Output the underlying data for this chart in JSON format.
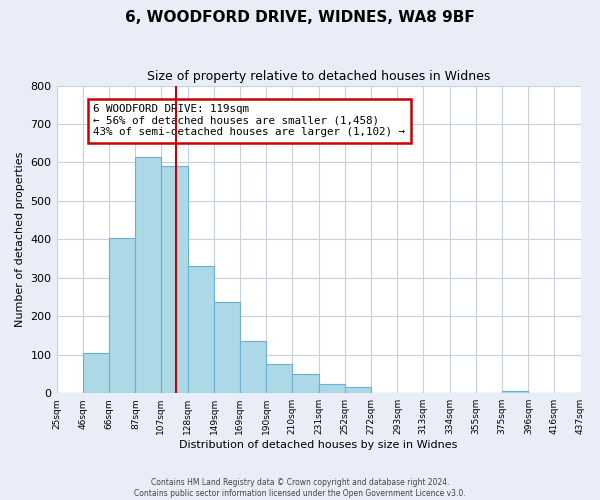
{
  "title": "6, WOODFORD DRIVE, WIDNES, WA8 9BF",
  "subtitle": "Size of property relative to detached houses in Widnes",
  "xlabel": "Distribution of detached houses by size in Widnes",
  "ylabel": "Number of detached properties",
  "bar_edges": [
    25,
    46,
    66,
    87,
    107,
    128,
    149,
    169,
    190,
    210,
    231,
    252,
    272,
    293,
    313,
    334,
    355,
    375,
    396,
    416,
    437
  ],
  "bar_heights": [
    0,
    105,
    403,
    615,
    590,
    330,
    236,
    135,
    75,
    50,
    25,
    15,
    0,
    0,
    0,
    0,
    0,
    7,
    0,
    0
  ],
  "bar_color": "#add8e6",
  "bar_edge_color": "#6baed6",
  "property_size": 119,
  "vline_color": "#cc0000",
  "annotation_box_color": "#cc0000",
  "annotation_text": "6 WOODFORD DRIVE: 119sqm\n← 56% of detached houses are smaller (1,458)\n43% of semi-detached houses are larger (1,102) →",
  "ylim": [
    0,
    800
  ],
  "yticks": [
    0,
    100,
    200,
    300,
    400,
    500,
    600,
    700,
    800
  ],
  "footer1": "Contains HM Land Registry data © Crown copyright and database right 2024.",
  "footer2": "Contains public sector information licensed under the Open Government Licence v3.0.",
  "bg_color": "#e8edf8",
  "plot_bg_color": "#ffffff",
  "grid_color": "#c8d0e0"
}
